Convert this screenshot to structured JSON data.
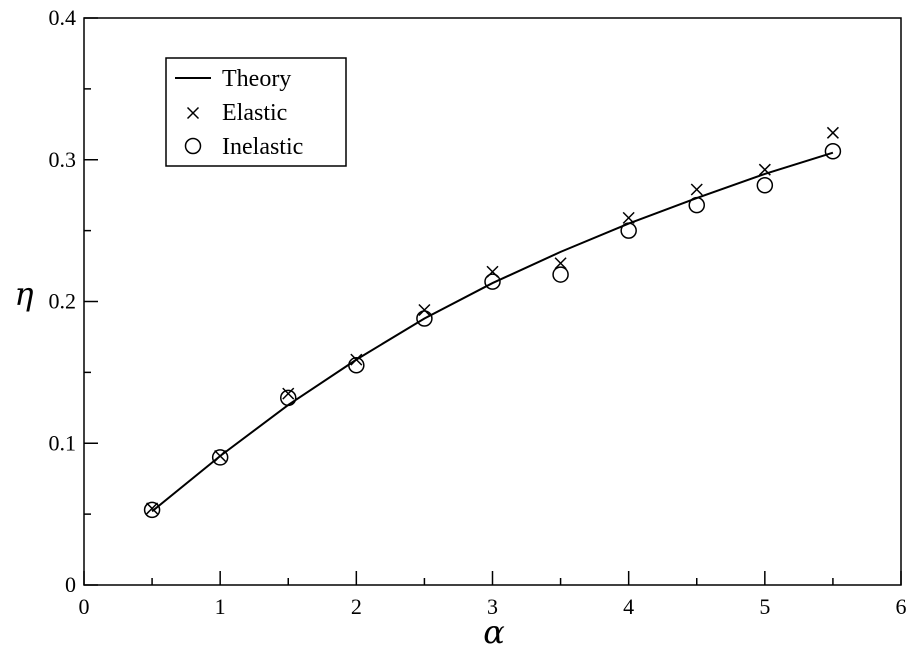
{
  "chart_data": {
    "type": "scatter",
    "xlabel": "α",
    "ylabel": "η",
    "xlim": [
      0,
      6
    ],
    "ylim": [
      0,
      0.4
    ],
    "xticks": [
      0,
      1,
      2,
      3,
      4,
      5,
      6
    ],
    "yticks": [
      0,
      0.1,
      0.2,
      0.3,
      0.4
    ],
    "xtick_labels": [
      "0",
      "1",
      "2",
      "3",
      "4",
      "5",
      "6"
    ],
    "ytick_labels": [
      "0",
      "0.1",
      "0.2",
      "0.3",
      "0.4"
    ],
    "grid": false,
    "legend_position": "top-left",
    "series": [
      {
        "name": "Theory",
        "style": "line",
        "color": "#000000",
        "x": [
          0.5,
          1.0,
          1.5,
          2.0,
          2.5,
          3.0,
          3.5,
          4.0,
          4.5,
          5.0,
          5.5
        ],
        "y": [
          0.052,
          0.091,
          0.127,
          0.159,
          0.188,
          0.213,
          0.235,
          0.255,
          0.273,
          0.29,
          0.305
        ]
      },
      {
        "name": "Elastic",
        "style": "cross",
        "color": "#000000",
        "x": [
          0.5,
          1.0,
          1.5,
          2.0,
          2.5,
          3.0,
          3.5,
          4.0,
          4.5,
          5.0,
          5.5
        ],
        "y": [
          0.054,
          0.091,
          0.135,
          0.159,
          0.194,
          0.221,
          0.227,
          0.259,
          0.279,
          0.293,
          0.319
        ]
      },
      {
        "name": "Inelastic",
        "style": "circle",
        "color": "#000000",
        "x": [
          0.5,
          1.0,
          1.5,
          2.0,
          2.5,
          3.0,
          3.5,
          4.0,
          4.5,
          5.0,
          5.5
        ],
        "y": [
          0.053,
          0.09,
          0.132,
          0.155,
          0.188,
          0.214,
          0.219,
          0.25,
          0.268,
          0.282,
          0.306
        ]
      }
    ]
  }
}
